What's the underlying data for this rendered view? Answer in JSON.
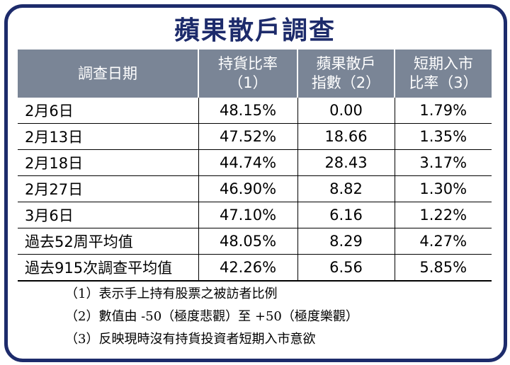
{
  "title": "蘋果散戶調查",
  "table": {
    "headers": [
      [
        "調查日期",
        ""
      ],
      [
        "持貨比率",
        "（1）"
      ],
      [
        "蘋果散戶",
        "指數（2）"
      ],
      [
        "短期入市",
        "比率（3）"
      ]
    ],
    "rows": [
      [
        "2月6日",
        "48.15%",
        "0.00",
        "1.79%"
      ],
      [
        "2月13日",
        "47.52%",
        "18.66",
        "1.35%"
      ],
      [
        "2月18日",
        "44.74%",
        "28.43",
        "3.17%"
      ],
      [
        "2月27日",
        "46.90%",
        "8.82",
        "1.30%"
      ],
      [
        "3月6日",
        "47.10%",
        "6.16",
        "1.22%"
      ],
      [
        "過去52周平均值",
        "48.05%",
        "8.29",
        "4.27%"
      ],
      [
        "過去915次調查平均值",
        "42.26%",
        "6.56",
        "5.85%"
      ]
    ]
  },
  "notes": [
    "（1）表示手上持有股票之被訪者比例",
    "（2）數值由 -50（極度悲觀）至 +50（極度樂觀）",
    "（3）反映現時沒有持貨投資者短期入市意欲"
  ],
  "colors": {
    "frame": "#1d2b6b",
    "title": "#1d2b6b",
    "header_bg": "#7a8596",
    "header_text": "#ffffff"
  }
}
